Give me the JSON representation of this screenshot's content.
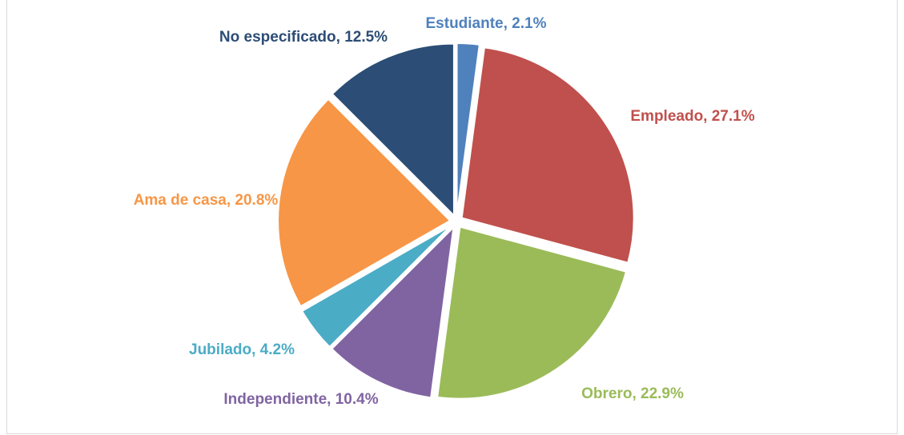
{
  "chart_data": {
    "type": "pie",
    "values": [
      2.1,
      27.1,
      22.9,
      10.4,
      4.2,
      20.8,
      12.5
    ],
    "value_labels": [
      "Estudiante, 2.1%",
      "Empleado, 27.1%",
      "Obrero, 22.9%",
      "Independiente, 10.4%",
      "Jubilado, 4.2%",
      "Ama de casa, 20.8%",
      "No especificado, 12.5%"
    ],
    "colors": [
      "#4f81bd",
      "#c0504d",
      "#9bbb59",
      "#8064a2",
      "#4bacc6",
      "#f79646",
      "#2c4d75"
    ],
    "start_angle": 0,
    "direction": "clockwise",
    "exploded": true
  }
}
